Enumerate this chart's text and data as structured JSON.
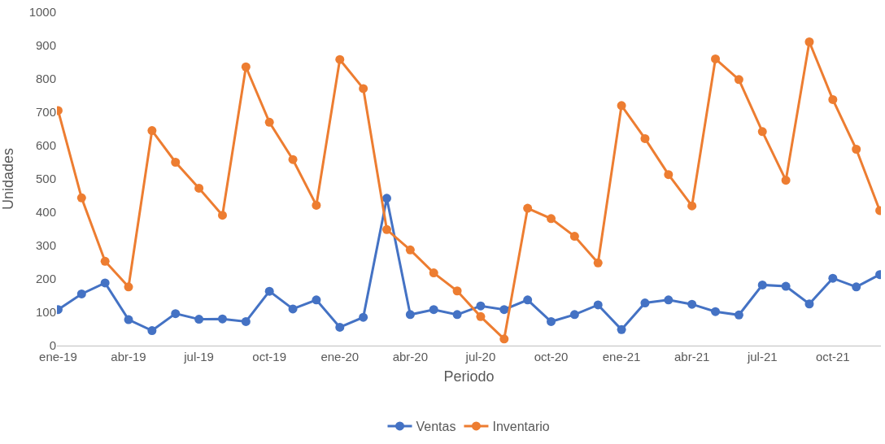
{
  "chart_data": {
    "type": "line",
    "xlabel": "Periodo",
    "ylabel": "Unidades",
    "categories": [
      "ene-19",
      null,
      null,
      "abr-19",
      null,
      null,
      "jul-19",
      null,
      null,
      "oct-19",
      null,
      null,
      "ene-20",
      null,
      null,
      "abr-20",
      null,
      null,
      "jul-20",
      null,
      null,
      "oct-20",
      null,
      null,
      "ene-21",
      null,
      null,
      "abr-21",
      null,
      null,
      "jul-21",
      null,
      null,
      "oct-21",
      null,
      null
    ],
    "series": [
      {
        "name": "Ventas",
        "color": "#4472c4",
        "values": [
          108,
          155,
          188,
          78,
          45,
          96,
          79,
          80,
          72,
          163,
          110,
          137,
          55,
          85,
          442,
          93,
          108,
          93,
          119,
          108,
          137,
          72,
          93,
          122,
          48,
          128,
          137,
          124,
          102,
          92,
          182,
          178,
          125,
          202,
          176,
          213
        ]
      },
      {
        "name": "Inventario",
        "color": "#ed7d31",
        "values": [
          705,
          443,
          253,
          176,
          645,
          550,
          472,
          391,
          836,
          670,
          558,
          421,
          858,
          771,
          348,
          287,
          218,
          164,
          87,
          20,
          412,
          381,
          328,
          248,
          720,
          621,
          513,
          419,
          860,
          798,
          642,
          496,
          911,
          738,
          589,
          405
        ]
      }
    ],
    "ylim": [
      0,
      1000
    ],
    "yticks": [
      0,
      100,
      200,
      300,
      400,
      500,
      600,
      700,
      800,
      900,
      1000
    ],
    "legend": "bottom",
    "marker": "circle",
    "line_style": "solid"
  }
}
